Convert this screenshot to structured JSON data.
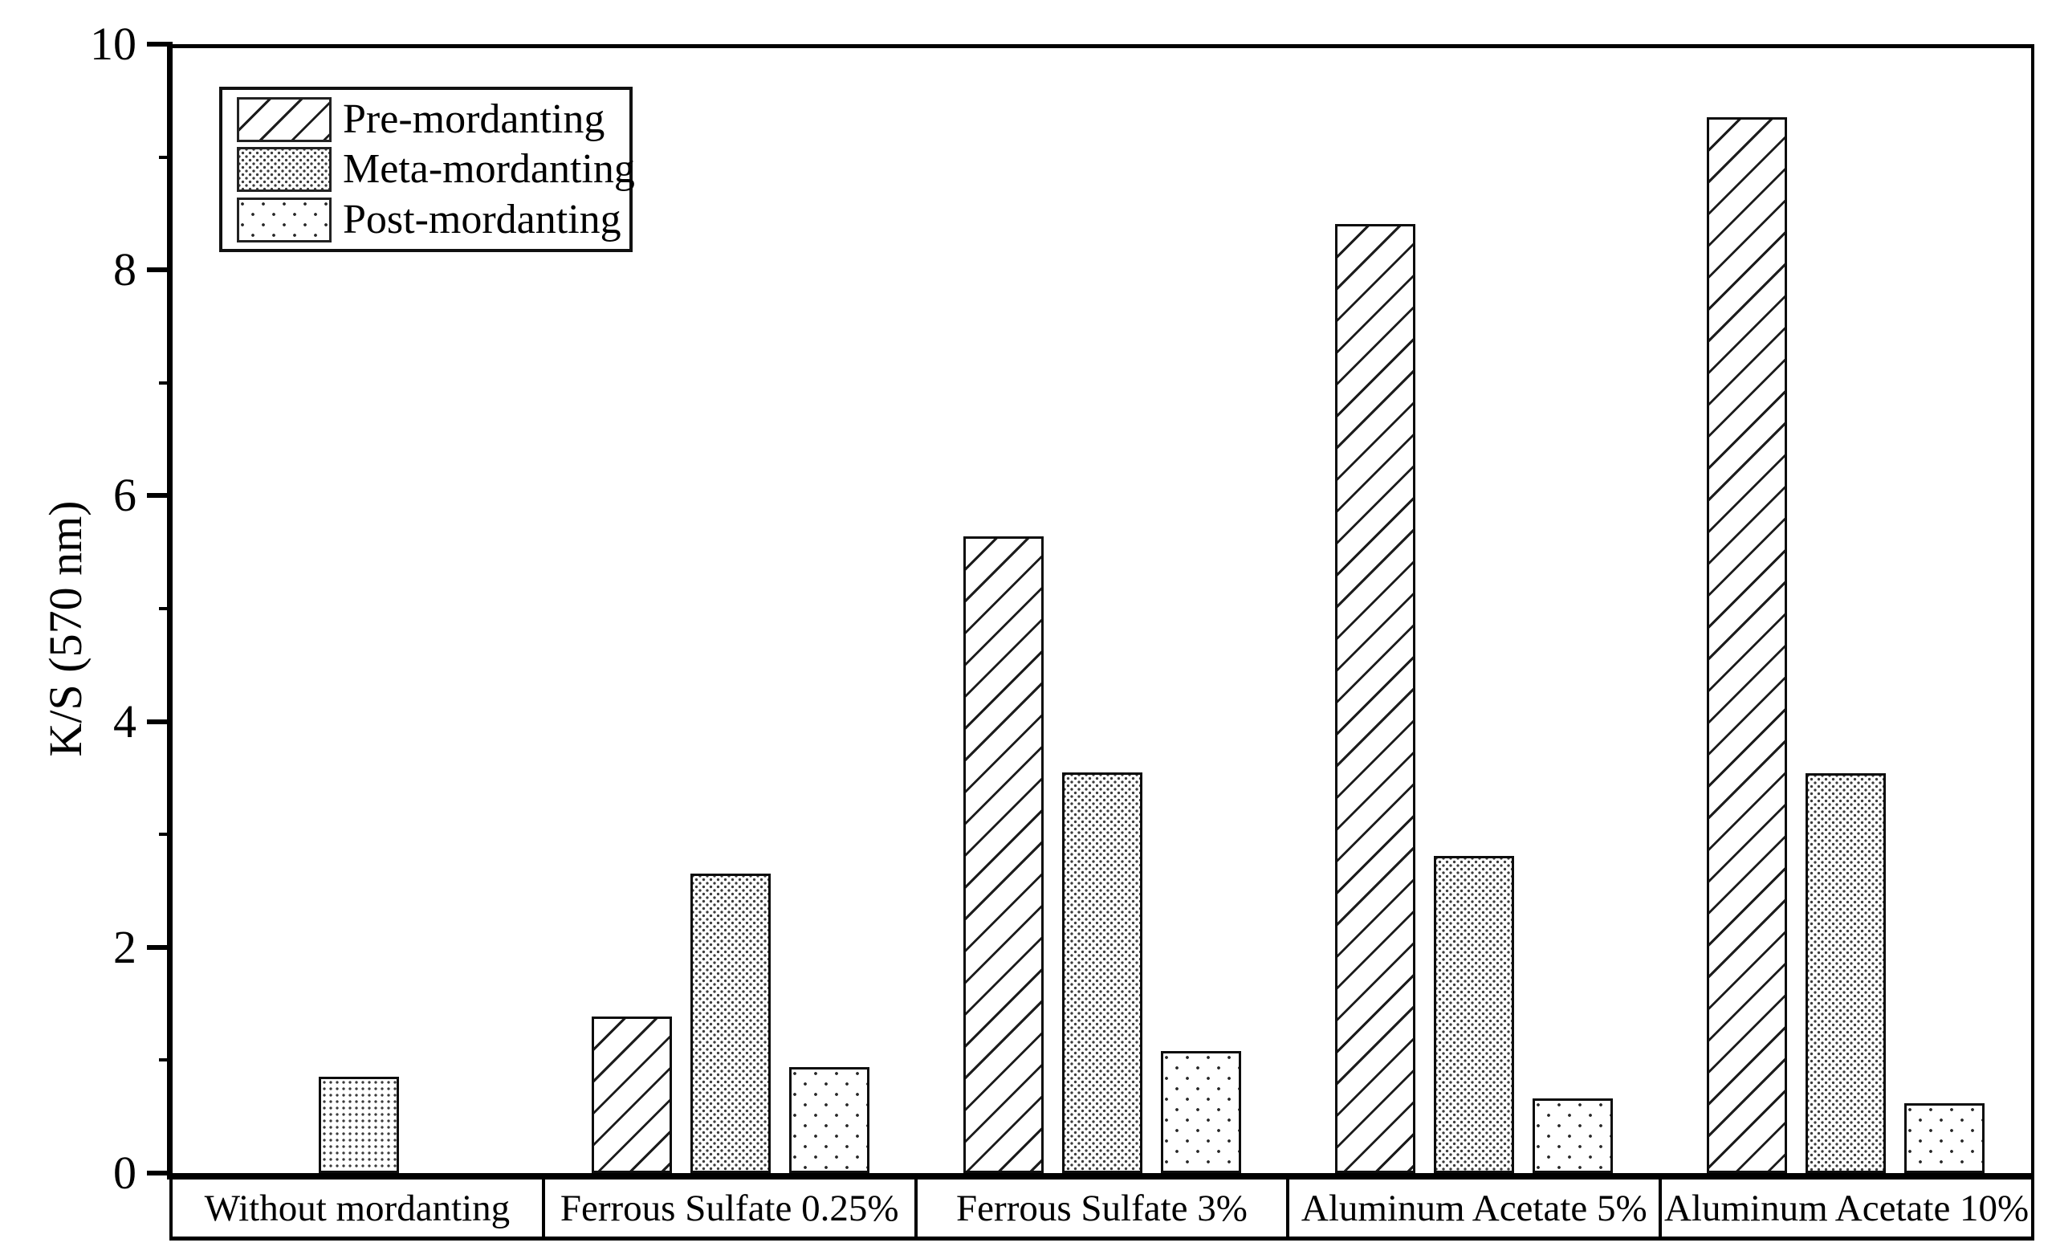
{
  "figure": {
    "background_color": "#ffffff",
    "foreground_color": "#000000"
  },
  "chart_data": {
    "type": "bar",
    "title": "",
    "ylabel": "K/S (570 nm)",
    "xlabel": "",
    "ylim": [
      0,
      10
    ],
    "yticks": [
      0,
      2,
      4,
      6,
      8,
      10
    ],
    "minor_yticks": [
      1,
      3,
      5,
      7,
      9
    ],
    "grid": false,
    "legend_position": "top-left",
    "categories": [
      "Without mordanting",
      "Ferrous Sulfate 0.25%",
      "Ferrous Sulfate 3%",
      "Aluminum Acetate 5%",
      "Aluminum Acetate 10%"
    ],
    "series": [
      {
        "name": "Pre-mordanting",
        "pattern": "diagonal-hatch",
        "values": [
          null,
          1.39,
          5.64,
          8.41,
          9.35
        ]
      },
      {
        "name": "Meta-mordanting",
        "pattern": "dense-dots",
        "values": [
          0.85,
          2.65,
          3.55,
          2.81,
          3.54
        ]
      },
      {
        "name": "Post-mordanting",
        "pattern": "sparse-dots",
        "values": [
          null,
          0.94,
          1.08,
          0.66,
          0.62
        ]
      }
    ],
    "pattern_overrides": [
      {
        "category_index": 0,
        "series_index": 1,
        "pattern": "medium-dots"
      }
    ],
    "notes": "Without mordanting group shows a single centered bar"
  }
}
